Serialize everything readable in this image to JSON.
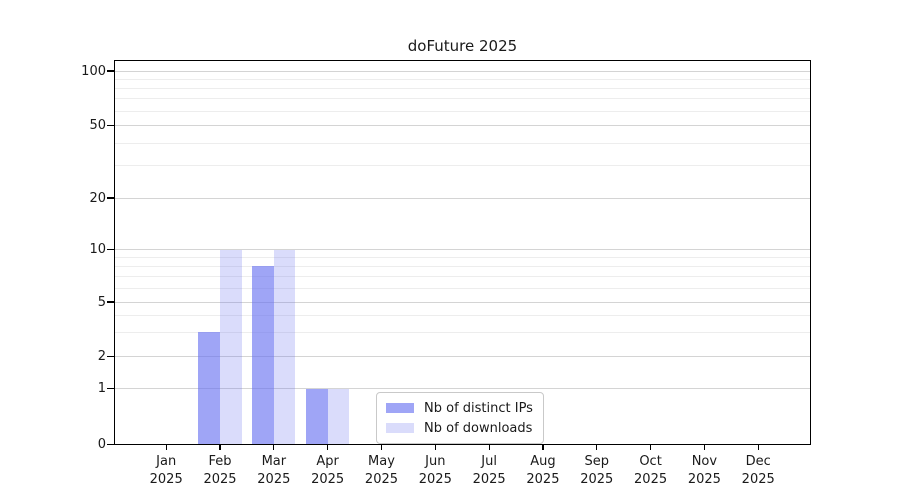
{
  "chart_data": {
    "type": "bar",
    "title": "doFuture 2025",
    "year": "2025",
    "months": [
      "Jan",
      "Feb",
      "Mar",
      "Apr",
      "May",
      "Jun",
      "Jul",
      "Aug",
      "Sep",
      "Oct",
      "Nov",
      "Dec"
    ],
    "series": [
      {
        "name": "Nb of distinct IPs",
        "values": [
          0,
          3,
          8,
          1,
          0,
          0,
          0,
          0,
          0,
          0,
          0,
          0
        ],
        "color": "rgba(100,110,240,0.62)"
      },
      {
        "name": "Nb of downloads",
        "values": [
          0,
          10,
          10,
          1,
          0,
          0,
          0,
          0,
          0,
          0,
          0,
          0
        ],
        "color": "rgba(100,110,240,0.24)"
      }
    ],
    "y_axis": {
      "scale": "log1p",
      "tick_values": [
        0,
        1,
        2,
        5,
        10,
        20,
        50,
        100
      ],
      "tick_labels": [
        "0",
        "1",
        "2",
        "5",
        "10",
        "20",
        "50",
        "100"
      ],
      "minor_gridline_values": [
        3,
        4,
        6,
        7,
        8,
        9,
        30,
        40,
        60,
        70,
        80,
        90
      ]
    },
    "x_axis": {
      "tick_count": 12
    },
    "legend": {
      "items": [
        "Nb of distinct IPs",
        "Nb of downloads"
      ],
      "position": "lower center"
    },
    "colors": {
      "major_grid": "#d4d4d4",
      "minor_grid": "#ededed",
      "axis": "#000000",
      "text": "#1a1a1a",
      "background": "#ffffff",
      "bar_dark": "rgba(100,110,240,0.62)",
      "bar_light": "rgba(100,110,240,0.24)"
    }
  }
}
